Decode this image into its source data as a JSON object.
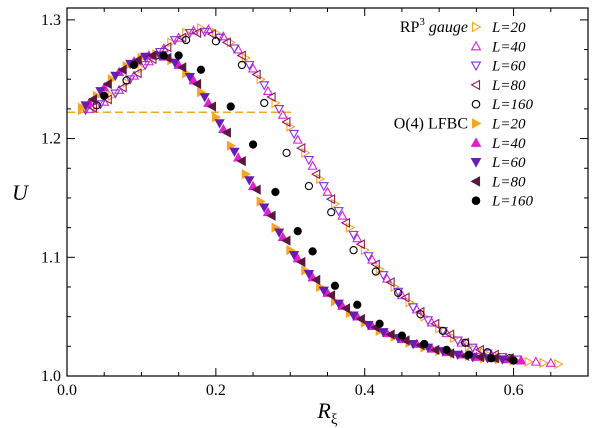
{
  "chart_data": {
    "type": "scatter",
    "xlabel": "R",
    "xlabel_sub": "ξ",
    "ylabel": "U",
    "xlim": [
      0,
      0.7
    ],
    "ylim": [
      1.0,
      1.31
    ],
    "xticks": [
      0.0,
      0.2,
      0.4,
      0.6
    ],
    "yticks": [
      1.0,
      1.1,
      1.2,
      1.3
    ],
    "xtick_labels": [
      "0.0",
      "0.2",
      "0.4",
      "0.6"
    ],
    "ytick_labels": [
      "1.0",
      "1.1",
      "1.2",
      "1.3"
    ],
    "legend_position": "top-right",
    "grid": false,
    "reference_line": {
      "y": 1.2222,
      "x_range": [
        0.0,
        0.305
      ],
      "color": "#f5a623",
      "style": "dashed"
    },
    "groups": [
      {
        "label_main": "RP",
        "label_sup": "3",
        "label_suffix": "gauge",
        "family": "rp3",
        "series": [
          {
            "name": "L=20",
            "marker": "triangle-right",
            "filled": false,
            "color": "#f5a623",
            "x": [
              0.02,
              0.04,
              0.06,
              0.08,
              0.1,
              0.12,
              0.14,
              0.16,
              0.18,
              0.2,
              0.22,
              0.24,
              0.26,
              0.28,
              0.3,
              0.32,
              0.34,
              0.36,
              0.38,
              0.4,
              0.42,
              0.44,
              0.46,
              0.48,
              0.5,
              0.52,
              0.54,
              0.56,
              0.58,
              0.6,
              0.62,
              0.64,
              0.66
            ],
            "y": [
              1.224,
              1.228,
              1.236,
              1.247,
              1.259,
              1.271,
              1.281,
              1.289,
              1.293,
              1.289,
              1.281,
              1.268,
              1.25,
              1.23,
              1.21,
              1.188,
              1.166,
              1.145,
              1.125,
              1.106,
              1.09,
              1.075,
              1.062,
              1.05,
              1.04,
              1.032,
              1.025,
              1.02,
              1.016,
              1.014,
              1.012,
              1.011,
              1.01
            ]
          },
          {
            "name": "L=40",
            "marker": "triangle-up",
            "filled": false,
            "color": "#e020d0",
            "x": [
              0.03,
              0.05,
              0.07,
              0.09,
              0.11,
              0.13,
              0.15,
              0.17,
              0.19,
              0.21,
              0.23,
              0.25,
              0.27,
              0.29,
              0.31,
              0.33,
              0.35,
              0.37,
              0.39,
              0.41,
              0.43,
              0.45,
              0.47,
              0.49,
              0.51,
              0.53,
              0.55,
              0.57,
              0.59,
              0.61,
              0.63,
              0.65
            ],
            "y": [
              1.225,
              1.231,
              1.241,
              1.253,
              1.265,
              1.276,
              1.285,
              1.291,
              1.292,
              1.286,
              1.275,
              1.259,
              1.24,
              1.22,
              1.199,
              1.177,
              1.155,
              1.135,
              1.116,
              1.098,
              1.082,
              1.068,
              1.056,
              1.045,
              1.036,
              1.028,
              1.022,
              1.018,
              1.015,
              1.013,
              1.012,
              1.011
            ]
          },
          {
            "name": "L=60",
            "marker": "triangle-down",
            "filled": false,
            "color": "#8a2be2",
            "x": [
              0.025,
              0.045,
              0.065,
              0.085,
              0.105,
              0.125,
              0.145,
              0.165,
              0.185,
              0.205,
              0.225,
              0.245,
              0.265,
              0.285,
              0.305,
              0.325,
              0.345,
              0.365,
              0.385,
              0.405,
              0.425,
              0.445,
              0.465,
              0.485,
              0.505,
              0.525,
              0.545,
              0.565,
              0.585,
              0.605
            ],
            "y": [
              1.224,
              1.229,
              1.238,
              1.25,
              1.262,
              1.273,
              1.283,
              1.289,
              1.29,
              1.285,
              1.276,
              1.262,
              1.245,
              1.225,
              1.204,
              1.182,
              1.16,
              1.139,
              1.119,
              1.101,
              1.085,
              1.071,
              1.058,
              1.047,
              1.038,
              1.03,
              1.024,
              1.019,
              1.016,
              1.014
            ]
          },
          {
            "name": "L=80",
            "marker": "triangle-left",
            "filled": false,
            "color": "#8b1a5c",
            "x": [
              0.035,
              0.055,
              0.075,
              0.095,
              0.115,
              0.135,
              0.155,
              0.175,
              0.195,
              0.215,
              0.235,
              0.255,
              0.275,
              0.295,
              0.315,
              0.335,
              0.355,
              0.375,
              0.395,
              0.415,
              0.435,
              0.455,
              0.475,
              0.495,
              0.515,
              0.535,
              0.555,
              0.575,
              0.595
            ],
            "y": [
              1.226,
              1.233,
              1.243,
              1.255,
              1.267,
              1.277,
              1.285,
              1.289,
              1.288,
              1.281,
              1.27,
              1.254,
              1.235,
              1.214,
              1.192,
              1.17,
              1.149,
              1.129,
              1.111,
              1.094,
              1.079,
              1.066,
              1.054,
              1.044,
              1.035,
              1.028,
              1.022,
              1.018,
              1.015
            ]
          },
          {
            "name": "L=160",
            "marker": "circle",
            "filled": false,
            "color": "#000000",
            "x": [
              0.04,
              0.08,
              0.12,
              0.16,
              0.2,
              0.235,
              0.265,
              0.295,
              0.325,
              0.355,
              0.385,
              0.415,
              0.445,
              0.475,
              0.505,
              0.535,
              0.565,
              0.595
            ],
            "y": [
              1.228,
              1.249,
              1.27,
              1.283,
              1.282,
              1.262,
              1.23,
              1.188,
              1.16,
              1.138,
              1.106,
              1.088,
              1.07,
              1.052,
              1.038,
              1.028,
              1.02,
              1.015
            ]
          }
        ]
      },
      {
        "label_main": "O(4) LFBC",
        "label_sup": "",
        "label_suffix": "",
        "family": "o4",
        "series": [
          {
            "name": "L=20",
            "marker": "triangle-right",
            "filled": true,
            "color": "#f5a623",
            "x": [
              0.02,
              0.04,
              0.06,
              0.08,
              0.1,
              0.12,
              0.14,
              0.16,
              0.18,
              0.2,
              0.22,
              0.24,
              0.26,
              0.28,
              0.3,
              0.32,
              0.34,
              0.36,
              0.38,
              0.4,
              0.42,
              0.44,
              0.46,
              0.48,
              0.5,
              0.52,
              0.54,
              0.56,
              0.58,
              0.6
            ],
            "y": [
              1.226,
              1.236,
              1.25,
              1.261,
              1.268,
              1.27,
              1.266,
              1.255,
              1.239,
              1.218,
              1.194,
              1.17,
              1.147,
              1.125,
              1.106,
              1.089,
              1.075,
              1.063,
              1.053,
              1.045,
              1.038,
              1.033,
              1.028,
              1.024,
              1.021,
              1.019,
              1.017,
              1.015,
              1.014,
              1.013
            ]
          },
          {
            "name": "L=40",
            "marker": "triangle-up",
            "filled": true,
            "color": "#e020d0",
            "x": [
              0.03,
              0.05,
              0.07,
              0.09,
              0.11,
              0.13,
              0.15,
              0.17,
              0.19,
              0.21,
              0.23,
              0.25,
              0.27,
              0.29,
              0.31,
              0.33,
              0.35,
              0.37,
              0.39,
              0.41,
              0.43,
              0.45,
              0.47,
              0.49,
              0.51,
              0.53,
              0.55,
              0.57,
              0.59,
              0.61
            ],
            "y": [
              1.23,
              1.243,
              1.256,
              1.265,
              1.27,
              1.269,
              1.262,
              1.249,
              1.23,
              1.208,
              1.184,
              1.16,
              1.138,
              1.117,
              1.099,
              1.083,
              1.07,
              1.059,
              1.05,
              1.042,
              1.036,
              1.031,
              1.027,
              1.023,
              1.02,
              1.018,
              1.016,
              1.015,
              1.014,
              1.013
            ]
          },
          {
            "name": "L=60",
            "marker": "triangle-down",
            "filled": true,
            "color": "#6a1bb0",
            "x": [
              0.025,
              0.045,
              0.065,
              0.085,
              0.105,
              0.125,
              0.145,
              0.165,
              0.185,
              0.205,
              0.225,
              0.245,
              0.265,
              0.285,
              0.305,
              0.325,
              0.345,
              0.365,
              0.385,
              0.405,
              0.425,
              0.445,
              0.465,
              0.485,
              0.505,
              0.525,
              0.545,
              0.565,
              0.585
            ],
            "y": [
              1.228,
              1.24,
              1.253,
              1.263,
              1.269,
              1.27,
              1.264,
              1.252,
              1.235,
              1.213,
              1.189,
              1.165,
              1.142,
              1.121,
              1.102,
              1.086,
              1.072,
              1.061,
              1.051,
              1.043,
              1.037,
              1.032,
              1.027,
              1.024,
              1.021,
              1.018,
              1.016,
              1.015,
              1.014
            ]
          },
          {
            "name": "L=80",
            "marker": "triangle-left",
            "filled": true,
            "color": "#5a1840",
            "x": [
              0.035,
              0.055,
              0.075,
              0.095,
              0.115,
              0.135,
              0.155,
              0.175,
              0.195,
              0.215,
              0.235,
              0.255,
              0.275,
              0.295,
              0.315,
              0.335,
              0.355,
              0.375,
              0.395,
              0.415,
              0.435,
              0.455,
              0.475,
              0.495,
              0.515,
              0.535,
              0.555,
              0.575,
              0.595
            ],
            "y": [
              1.233,
              1.246,
              1.258,
              1.266,
              1.27,
              1.268,
              1.26,
              1.246,
              1.227,
              1.205,
              1.181,
              1.157,
              1.135,
              1.114,
              1.096,
              1.081,
              1.068,
              1.057,
              1.048,
              1.041,
              1.035,
              1.03,
              1.026,
              1.022,
              1.019,
              1.017,
              1.016,
              1.015,
              1.014
            ]
          },
          {
            "name": "L=160",
            "marker": "circle",
            "filled": true,
            "color": "#000000",
            "x": [
              0.05,
              0.09,
              0.13,
              0.15,
              0.18,
              0.22,
              0.25,
              0.28,
              0.31,
              0.33,
              0.36,
              0.39,
              0.42,
              0.45,
              0.48,
              0.51,
              0.54,
              0.57,
              0.6
            ],
            "y": [
              1.236,
              1.262,
              1.27,
              1.27,
              1.258,
              1.227,
              1.195,
              1.155,
              1.122,
              1.105,
              1.076,
              1.06,
              1.044,
              1.034,
              1.027,
              1.022,
              1.018,
              1.015,
              1.013
            ]
          }
        ]
      }
    ]
  }
}
